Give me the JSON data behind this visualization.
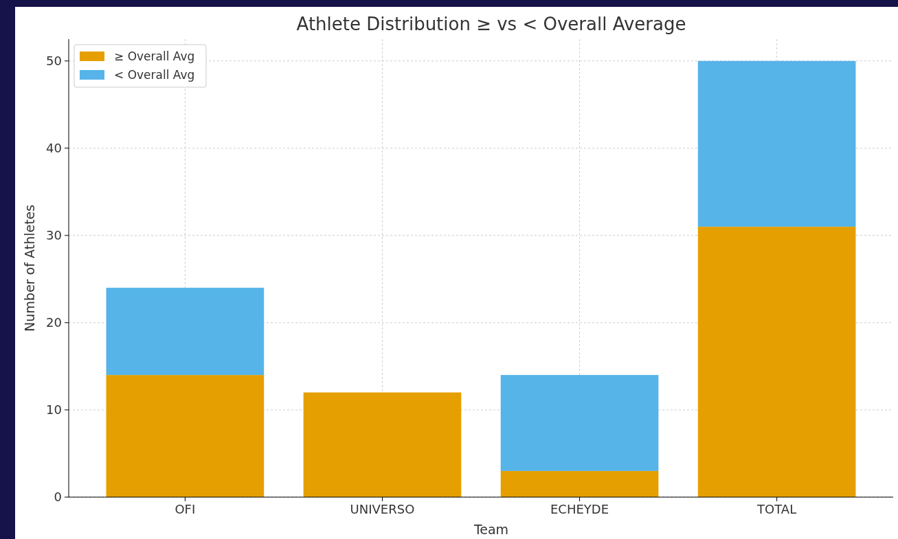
{
  "chart_data": {
    "type": "bar",
    "title": "Athlete Distribution ≥ vs < Overall Average",
    "xlabel": "Team",
    "ylabel": "Number of Athletes",
    "categories": [
      "OFI",
      "UNIVERSO",
      "ECHEYDE",
      "TOTAL"
    ],
    "stacked": true,
    "series": [
      {
        "name": "≥ Overall Avg",
        "color": "#e69f00",
        "values": [
          14,
          12,
          3,
          31
        ]
      },
      {
        "name": "< Overall Avg",
        "color": "#56b4e9",
        "values": [
          10,
          0,
          11,
          19
        ]
      }
    ],
    "ylim": [
      0,
      52.5
    ],
    "yticks": [
      0,
      10,
      20,
      30,
      40,
      50
    ],
    "grid": true,
    "legend": "top left"
  }
}
